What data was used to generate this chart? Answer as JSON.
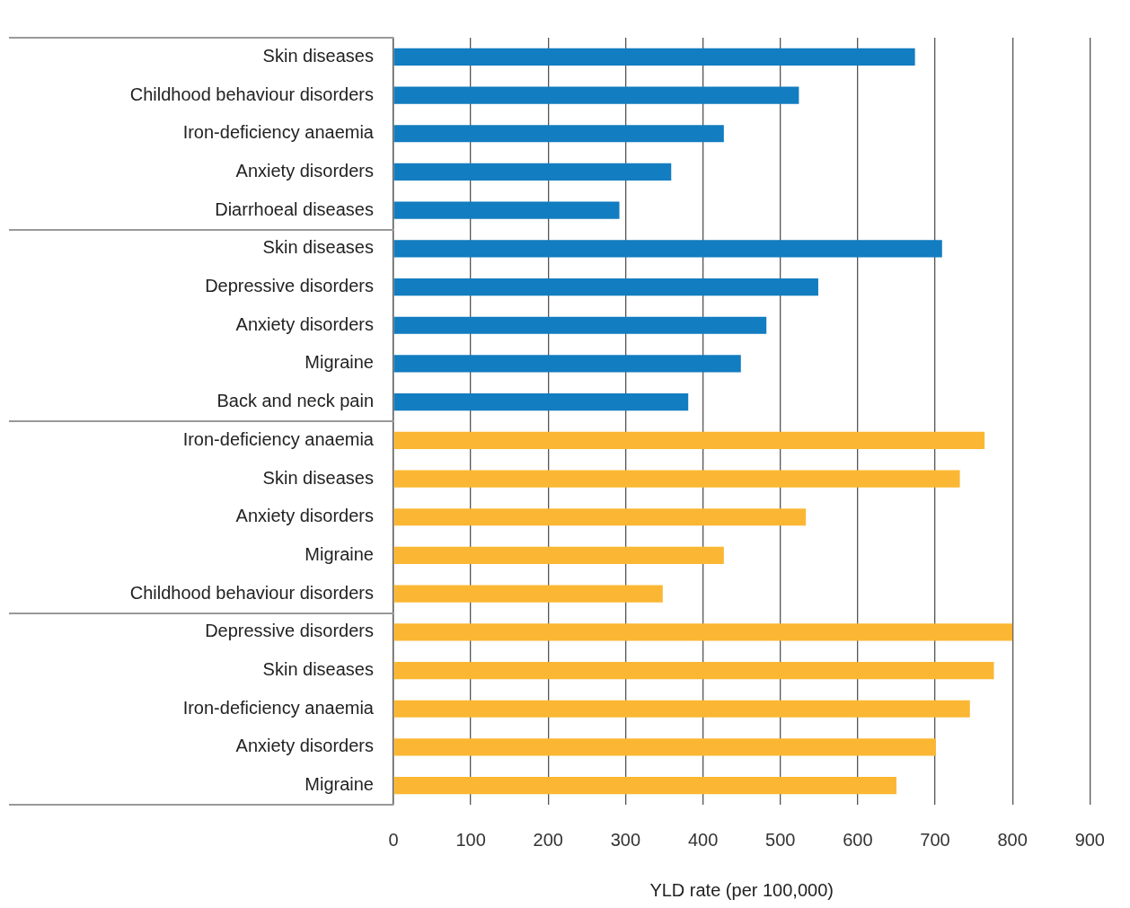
{
  "chart_data": {
    "type": "bar",
    "orientation": "horizontal",
    "xlabel": "YLD rate (per 100,000)",
    "categories": [
      "Skin diseases",
      "Childhood behaviour disorders",
      "Iron-deficiency anaemia",
      "Anxiety disorders",
      "Diarrhoeal diseases",
      "Skin diseases",
      "Depressive disorders",
      "Anxiety disorders",
      "Migraine",
      "Back and neck pain",
      "Iron-deficiency anaemia",
      "Skin diseases",
      "Anxiety disorders",
      "Migraine",
      "Childhood behaviour disorders",
      "Depressive disorders",
      "Skin diseases",
      "Iron-deficiency anaemia",
      "Anxiety disorders",
      "Migraine"
    ],
    "values": [
      674,
      524,
      427,
      359,
      292,
      709,
      549,
      482,
      449,
      381,
      764,
      732,
      533,
      427,
      348,
      800,
      776,
      745,
      701,
      650
    ],
    "colors": [
      "#127dc0",
      "#127dc0",
      "#127dc0",
      "#127dc0",
      "#127dc0",
      "#127dc0",
      "#127dc0",
      "#127dc0",
      "#127dc0",
      "#127dc0",
      "#fbb733",
      "#fbb733",
      "#fbb733",
      "#fbb733",
      "#fbb733",
      "#fbb733",
      "#fbb733",
      "#fbb733",
      "#fbb733",
      "#fbb733"
    ],
    "xlim": [
      0,
      900
    ],
    "xticks": [
      0,
      100,
      200,
      300,
      400,
      500,
      600,
      700,
      800,
      900
    ],
    "grid": "x",
    "legend": false
  }
}
